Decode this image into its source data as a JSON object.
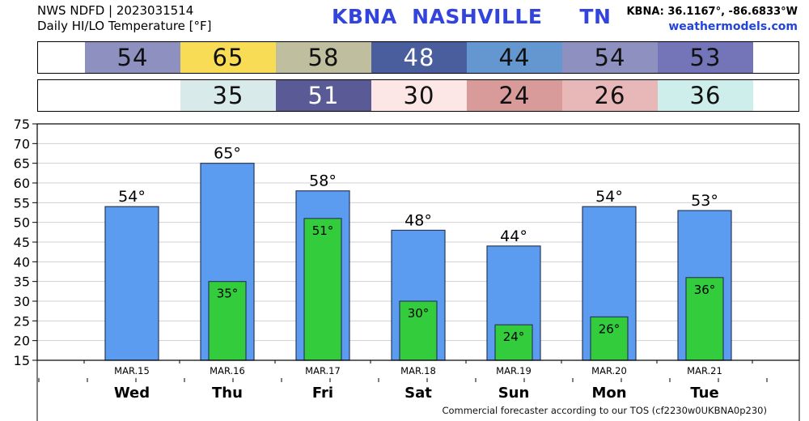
{
  "header": {
    "product_line": "NWS NDFD | 2023031514",
    "subtitle": "Daily HI/LO Temperature [°F]",
    "station_title": "KBNA  NASHVILLE     TN",
    "coordinates": "KBNA: 36.1167°, -86.6833°W",
    "site": "weathermodels.com"
  },
  "colors": {
    "high_bar": "#5b9cf0",
    "low_bar": "#33cc3c",
    "title": "#3344dd"
  },
  "high_row": [
    {
      "value": "54",
      "color": "#8e90c0"
    },
    {
      "value": "65",
      "color": "#f9dc55"
    },
    {
      "value": "58",
      "color": "#bfbf9f"
    },
    {
      "value": "48",
      "color": "#4a5e9e"
    },
    {
      "value": "44",
      "color": "#6497cf"
    },
    {
      "value": "54",
      "color": "#8e90c0"
    },
    {
      "value": "53",
      "color": "#7474b8"
    }
  ],
  "low_row": [
    {
      "value": "",
      "color": "#ffffff"
    },
    {
      "value": "35",
      "color": "#d9eaea"
    },
    {
      "value": "51",
      "color": "#5a5a96"
    },
    {
      "value": "30",
      "color": "#fde6e6"
    },
    {
      "value": "24",
      "color": "#d99a9a"
    },
    {
      "value": "26",
      "color": "#e8b8b8"
    },
    {
      "value": "36",
      "color": "#cdeeea"
    }
  ],
  "chart_data": {
    "type": "bar",
    "categories": [
      "MAR.15",
      "MAR.16",
      "MAR.17",
      "MAR.18",
      "MAR.19",
      "MAR.20",
      "MAR.21"
    ],
    "weekdays": [
      "Wed",
      "Thu",
      "Fri",
      "Sat",
      "Sun",
      "Mon",
      "Tue"
    ],
    "series": [
      {
        "values": [
          54,
          65,
          58,
          48,
          44,
          54,
          53
        ]
      },
      {
        "values": [
          null,
          35,
          51,
          30,
          24,
          26,
          36
        ]
      }
    ],
    "high_labels": [
      "54°",
      "65°",
      "58°",
      "48°",
      "44°",
      "54°",
      "53°"
    ],
    "low_labels": [
      "",
      "35°",
      "51°",
      "30°",
      "24°",
      "26°",
      "36°"
    ],
    "ylim": [
      15,
      75
    ],
    "yticks": [
      "15",
      "20",
      "25",
      "30",
      "35",
      "40",
      "45",
      "50",
      "55",
      "60",
      "65",
      "70",
      "75"
    ],
    "grid": true
  },
  "footer": "Commercial forecaster according to our TOS (cf2230w0UKBNA0p230)"
}
